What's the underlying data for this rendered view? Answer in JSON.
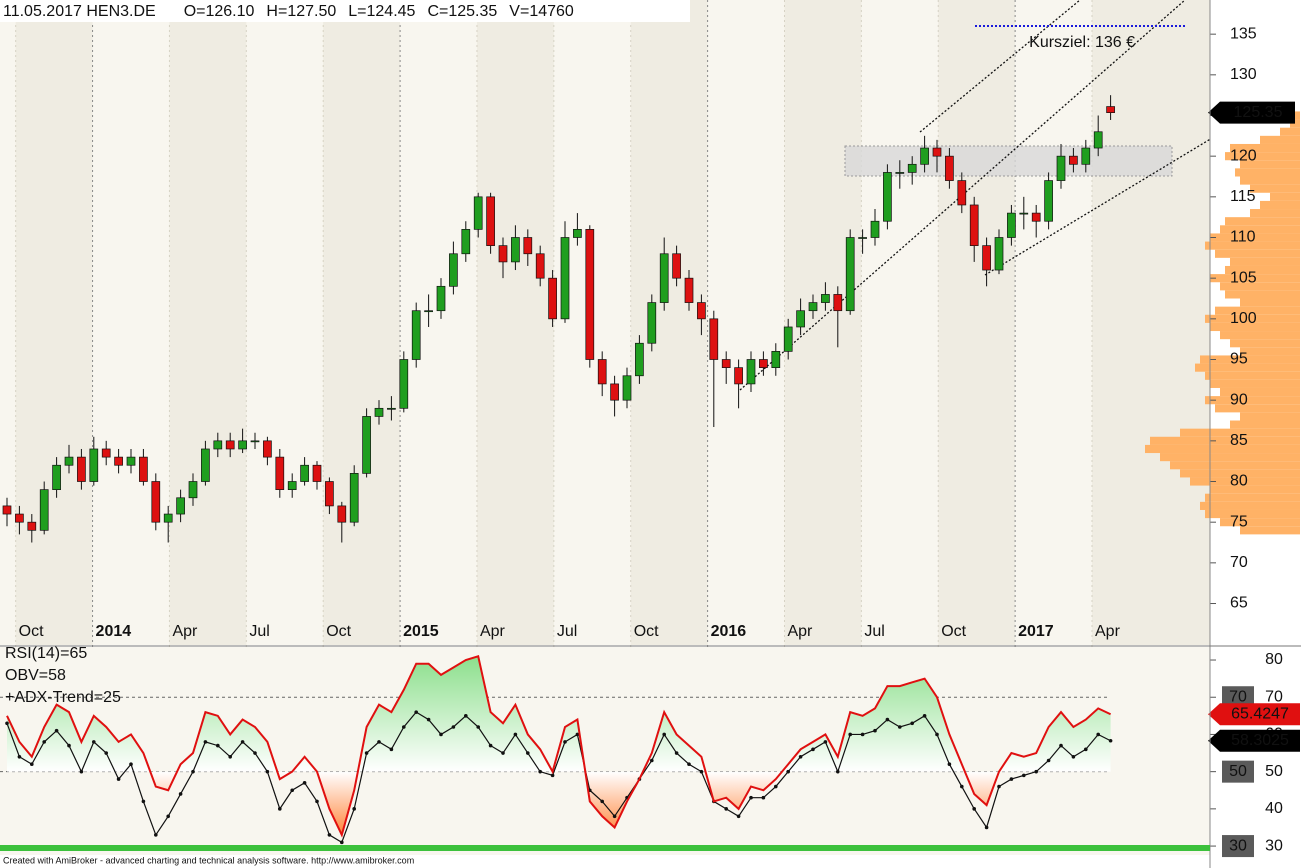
{
  "chart_data": [
    {
      "type": "candlestick",
      "header": [
        "11.05.2017 HEN3.DE",
        "O=126.10",
        "H=127.50",
        "L=124.45",
        "C=125.35",
        "V=14760"
      ],
      "candles": [
        [
          77,
          78,
          74.5,
          76
        ],
        [
          76,
          77,
          73.5,
          75
        ],
        [
          75,
          76,
          72.5,
          74
        ],
        [
          74,
          80,
          73.5,
          79
        ],
        [
          79,
          83,
          78,
          82
        ],
        [
          82,
          84.5,
          81,
          83
        ],
        [
          83,
          84,
          79,
          80
        ],
        [
          80,
          85.5,
          79.5,
          84
        ],
        [
          84,
          85,
          82,
          83
        ],
        [
          83,
          84,
          81,
          82
        ],
        [
          82,
          84,
          81,
          83
        ],
        [
          83,
          84,
          79.5,
          80
        ],
        [
          80,
          81,
          74,
          75
        ],
        [
          75,
          77,
          72.5,
          76
        ],
        [
          76,
          79,
          75,
          78
        ],
        [
          78,
          81,
          77,
          80
        ],
        [
          80,
          85,
          79.5,
          84
        ],
        [
          84,
          86,
          83,
          85
        ],
        [
          85,
          86,
          83,
          84
        ],
        [
          84,
          86.5,
          83.5,
          85
        ],
        [
          85,
          86,
          84,
          85
        ],
        [
          85,
          85.5,
          82,
          83
        ],
        [
          83,
          84,
          78,
          79
        ],
        [
          79,
          81,
          78,
          80
        ],
        [
          80,
          83,
          79.5,
          82
        ],
        [
          82,
          82.5,
          79,
          80
        ],
        [
          80,
          80.5,
          76,
          77
        ],
        [
          77,
          77.5,
          72.5,
          75
        ],
        [
          75,
          82,
          74.5,
          81
        ],
        [
          81,
          89,
          80.5,
          88
        ],
        [
          88,
          90,
          87,
          89
        ],
        [
          89,
          90.5,
          87.5,
          89
        ],
        [
          89,
          96,
          88.5,
          95
        ],
        [
          95,
          102,
          94,
          101
        ],
        [
          101,
          103,
          99,
          101
        ],
        [
          101,
          105,
          100,
          104
        ],
        [
          104,
          109.5,
          103,
          108
        ],
        [
          108,
          112,
          107,
          111
        ],
        [
          111,
          115.5,
          110,
          115
        ],
        [
          115,
          115.5,
          108,
          109
        ],
        [
          109,
          110,
          105,
          107
        ],
        [
          107,
          111.5,
          106,
          110
        ],
        [
          110,
          111,
          106.5,
          108
        ],
        [
          108,
          109,
          104,
          105
        ],
        [
          105,
          106,
          99,
          100
        ],
        [
          100,
          112,
          99.5,
          110
        ],
        [
          110,
          113,
          109,
          111
        ],
        [
          111,
          111.5,
          94,
          95
        ],
        [
          95,
          96,
          90.5,
          92
        ],
        [
          92,
          93,
          88,
          90
        ],
        [
          90,
          94,
          89,
          93
        ],
        [
          93,
          98,
          92,
          97
        ],
        [
          97,
          103,
          96,
          102
        ],
        [
          102,
          110,
          101,
          108
        ],
        [
          108,
          109,
          104,
          105
        ],
        [
          105,
          106,
          101,
          102
        ],
        [
          102,
          103,
          98,
          100
        ],
        [
          100,
          101,
          86.7,
          95
        ],
        [
          95,
          96,
          92,
          94
        ],
        [
          94,
          95,
          89,
          92
        ],
        [
          92,
          96,
          91,
          95
        ],
        [
          95,
          96,
          93,
          94
        ],
        [
          94,
          97,
          93,
          96
        ],
        [
          96,
          100,
          95,
          99
        ],
        [
          99,
          102.5,
          98,
          101
        ],
        [
          101,
          103,
          100,
          102
        ],
        [
          102,
          104.5,
          101,
          103
        ],
        [
          103,
          104,
          96.5,
          101
        ],
        [
          101,
          111,
          100.5,
          110
        ],
        [
          110,
          111,
          108,
          110
        ],
        [
          110,
          113.5,
          109,
          112
        ],
        [
          112,
          119,
          111,
          118
        ],
        [
          118,
          119.5,
          116,
          118
        ],
        [
          118,
          120,
          116.5,
          119
        ],
        [
          119,
          122.5,
          118,
          121
        ],
        [
          121,
          122,
          118,
          120
        ],
        [
          120,
          121,
          116,
          117
        ],
        [
          117,
          118,
          113,
          114
        ],
        [
          114,
          115,
          107,
          109
        ],
        [
          109,
          110,
          104,
          106
        ],
        [
          106,
          111,
          105.5,
          110
        ],
        [
          110,
          114,
          109,
          113
        ],
        [
          113,
          115,
          111,
          113
        ],
        [
          113,
          114,
          110,
          112
        ],
        [
          112,
          118,
          111,
          117
        ],
        [
          117,
          121.5,
          116,
          120
        ],
        [
          120,
          121,
          118,
          119
        ],
        [
          119,
          122,
          118,
          121
        ],
        [
          121,
          125,
          120,
          123
        ],
        [
          126.1,
          127.5,
          124.45,
          125.35
        ]
      ],
      "up_color": "#1f9e1f",
      "down_color": "#dd1111",
      "ylim": [
        59.9,
        139.2
      ],
      "yticks": [
        65,
        70,
        75,
        80,
        85,
        90,
        95,
        100,
        105,
        110,
        115,
        120,
        125,
        130,
        135
      ],
      "xticks": [
        {
          "value": 0.7,
          "label": "Oct"
        },
        {
          "value": 6.9,
          "label": "2014"
        },
        {
          "value": 13.1,
          "label": "Apr"
        },
        {
          "value": 19.3,
          "label": "Jul"
        },
        {
          "value": 25.5,
          "label": "Oct"
        },
        {
          "value": 31.7,
          "label": "2015"
        },
        {
          "value": 37.9,
          "label": "Apr"
        },
        {
          "value": 44.1,
          "label": "Jul"
        },
        {
          "value": 50.3,
          "label": "Oct"
        },
        {
          "value": 56.5,
          "label": "2016"
        },
        {
          "value": 62.7,
          "label": "Apr"
        },
        {
          "value": 68.9,
          "label": "Jul"
        },
        {
          "value": 75.1,
          "label": "Oct"
        },
        {
          "value": 81.3,
          "label": "2017"
        },
        {
          "value": 87.5,
          "label": "Apr"
        }
      ],
      "target": {
        "label": "Kursziel: 136 €",
        "value": 136,
        "color": "#1a1adb"
      },
      "volume_profile": {
        "prices": [
          74,
          75,
          76,
          77,
          78,
          79,
          80,
          81,
          82,
          83,
          84,
          85,
          86,
          87,
          88,
          89,
          90,
          91,
          92,
          93,
          94,
          95,
          96,
          97,
          98,
          99,
          100,
          101,
          102,
          103,
          104,
          105,
          106,
          107,
          108,
          109,
          110,
          111,
          112,
          113,
          114,
          115,
          116,
          117,
          118,
          119,
          120,
          121,
          122,
          123,
          124,
          125
        ],
        "values": [
          60,
          80,
          95,
          100,
          95,
          90,
          110,
          120,
          130,
          140,
          155,
          150,
          120,
          70,
          60,
          85,
          95,
          80,
          90,
          95,
          105,
          100,
          60,
          70,
          80,
          90,
          95,
          85,
          60,
          75,
          80,
          90,
          75,
          70,
          85,
          95,
          90,
          80,
          75,
          50,
          40,
          30,
          50,
          60,
          65,
          60,
          75,
          70,
          40,
          20,
          10,
          8
        ],
        "xlim": [
          0,
          160
        ],
        "color": "#ffb266"
      }
    },
    {
      "type": "line",
      "series": [
        {
          "name": "RSI(14)=65",
          "color": "#e01010",
          "values": [
            65,
            58,
            54,
            62,
            68,
            66,
            58,
            65,
            62,
            58,
            60,
            55,
            46,
            45,
            52,
            55,
            66,
            65,
            60,
            64,
            62,
            58,
            48,
            50,
            54,
            50,
            40,
            33,
            45,
            62,
            68,
            66,
            72,
            79,
            79,
            76,
            78,
            80,
            81,
            66,
            63,
            68,
            60,
            56,
            50,
            62,
            64,
            42,
            38,
            35,
            42,
            48,
            55,
            66,
            60,
            57,
            54,
            42,
            43,
            40,
            46,
            45,
            48,
            52,
            56,
            58,
            60,
            54,
            66,
            65,
            67,
            73,
            73,
            74,
            75,
            70,
            60,
            52,
            44,
            41,
            50,
            55,
            54,
            55,
            62,
            66,
            62,
            64,
            67,
            65.4247
          ]
        },
        {
          "name": "OBV=58",
          "color": "#111111",
          "values": [
            63,
            54,
            52,
            58,
            61,
            57,
            50,
            58,
            55,
            48,
            52,
            42,
            33,
            38,
            44,
            50,
            58,
            57,
            54,
            58,
            55,
            50,
            40,
            45,
            47,
            42,
            33,
            31,
            40,
            55,
            58,
            56,
            62,
            66,
            64,
            60,
            62,
            65,
            62,
            57,
            55,
            60,
            55,
            50,
            49,
            58,
            60,
            45,
            42,
            38,
            43,
            48,
            53,
            60,
            55,
            52,
            50,
            42,
            40,
            38,
            43,
            43,
            46,
            50,
            54,
            56,
            58,
            50,
            60,
            60,
            61,
            64,
            62,
            63,
            65,
            60,
            52,
            46,
            40,
            35,
            46,
            48,
            49,
            50,
            53,
            57,
            54,
            56,
            60,
            58.3025
          ]
        }
      ],
      "trend_label": "+ADX-Trend=25",
      "ylim": [
        27.6,
        83.5
      ],
      "yticks": [
        30,
        40,
        50,
        60,
        70,
        80
      ],
      "levels": [
        70,
        50,
        30
      ]
    }
  ],
  "footer": "Created with AmiBroker - advanced charting and technical analysis software. http://www.amibroker.com"
}
